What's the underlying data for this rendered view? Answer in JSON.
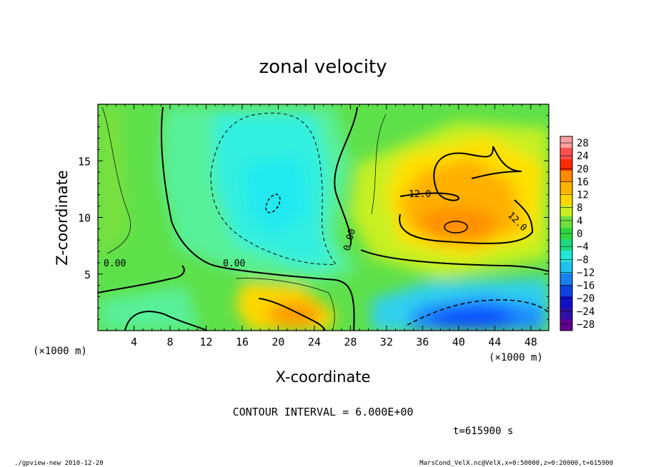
{
  "chart_data": {
    "type": "heatmap",
    "title": "zonal velocity",
    "xlabel": "X-coordinate",
    "ylabel": "Z-coordinate",
    "x_unit": "(×1000 m)",
    "y_unit": "(×1000 m)",
    "xlim": [
      0,
      50
    ],
    "ylim": [
      0,
      20
    ],
    "x_ticks": [
      4,
      8,
      12,
      16,
      20,
      24,
      28,
      32,
      36,
      40,
      44,
      48
    ],
    "y_ticks": [
      5,
      10,
      15
    ],
    "colorbar": {
      "levels": [
        28,
        24,
        20,
        16,
        12,
        8,
        4,
        0,
        -4,
        -8,
        -12,
        -16,
        -20,
        -24,
        -28
      ],
      "range": [
        -30,
        30
      ]
    },
    "contour_labels": [
      "0.00",
      "0.00",
      "0.00",
      "12.0",
      "12.0"
    ],
    "contour_interval_text": "CONTOUR INTERVAL = 6.000E+00",
    "time_text": "t=615900 s",
    "features": [
      {
        "kind": "positive-max",
        "x": 39.5,
        "z": 9.2,
        "value": 17
      },
      {
        "kind": "positive-max",
        "x": 22.5,
        "z": 1.5,
        "value": 15
      },
      {
        "kind": "negative-min",
        "x": 40,
        "z": 1.5,
        "value": -15
      },
      {
        "kind": "negative-min",
        "x": 19.5,
        "z": 11.5,
        "value": -7
      }
    ]
  },
  "footer": {
    "left": "./gpview-new  2010-12-20",
    "right": "MarsCond_VelX.nc@VelX,x=0:50000,z=0:20000,t=615900"
  }
}
